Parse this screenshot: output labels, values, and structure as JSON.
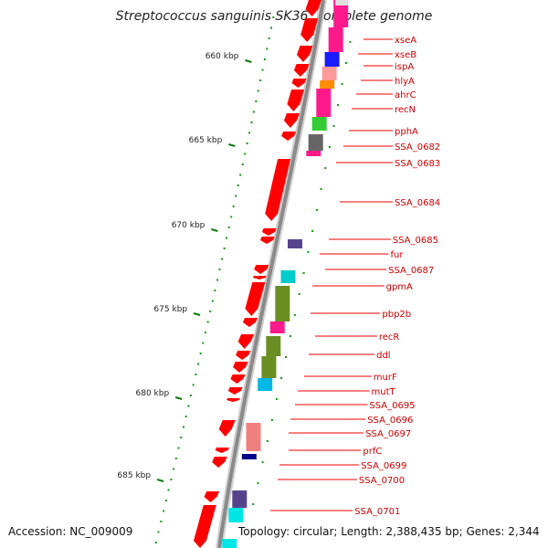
{
  "title": "Streptococcus sanguinis SK36, complete genome",
  "accession": "Accession: NC_009009",
  "topology": "Topology: circular; Length: 2,388,435 bp; Genes: 2,344",
  "ticks": [
    "660 kbp",
    "665 kbp",
    "670 kbp",
    "675 kbp",
    "680 kbp",
    "685 kbp"
  ],
  "labels": [
    "xseA",
    "xseB",
    "ispA",
    "hlyA",
    "ahrC",
    "recN",
    "pphA",
    "SSA_0682",
    "SSA_0683",
    "SSA_0684",
    "SSA_0685",
    "fur",
    "SSA_0687",
    "gpmA",
    "pbp2b",
    "recR",
    "ddl",
    "murF",
    "mutT",
    "SSA_0695",
    "SSA_0696",
    "SSA_0697",
    "prfC",
    "SSA_0699",
    "SSA_0700",
    "SSA_0701"
  ],
  "colors": {
    "backbone": "#8a8a8a",
    "forward_gene": "#ff0000",
    "label_text": "#cc0000",
    "tick_mark": "#117711",
    "dot": "#119911"
  }
}
